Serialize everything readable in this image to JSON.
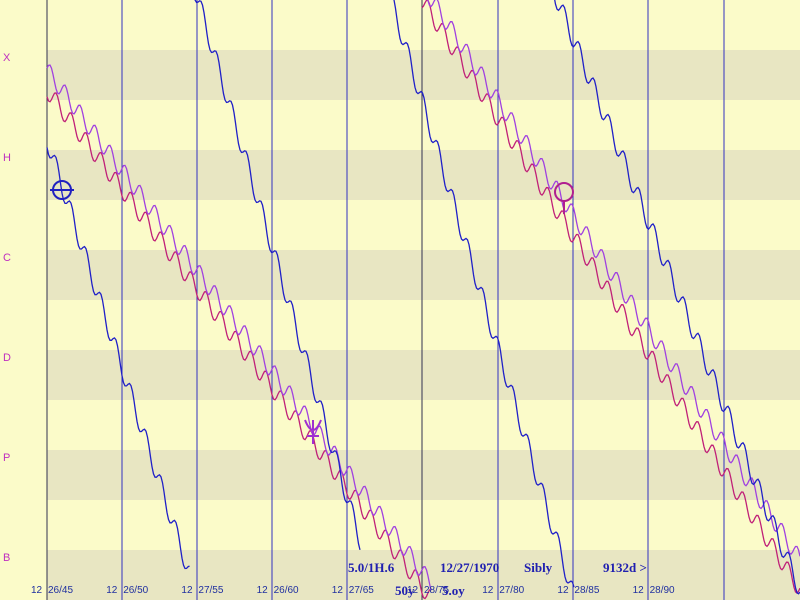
{
  "row_labels": [
    "X",
    "H",
    "C",
    "D",
    "P",
    "B"
  ],
  "x_labels": [
    "12",
    "26/45",
    "12",
    "26/50",
    "12",
    "27/55",
    "12",
    "26/60",
    "12",
    "27/65",
    "12",
    "28/75",
    "12",
    "27/80",
    "12",
    "28/85",
    "12",
    "28/90"
  ],
  "status": {
    "left": "5.0/1H.6",
    "date": "12/27/1970",
    "chart": "Sibly",
    "days": "9132d >",
    "bottom_left": "50y",
    "bottom": "5.oy"
  }
}
